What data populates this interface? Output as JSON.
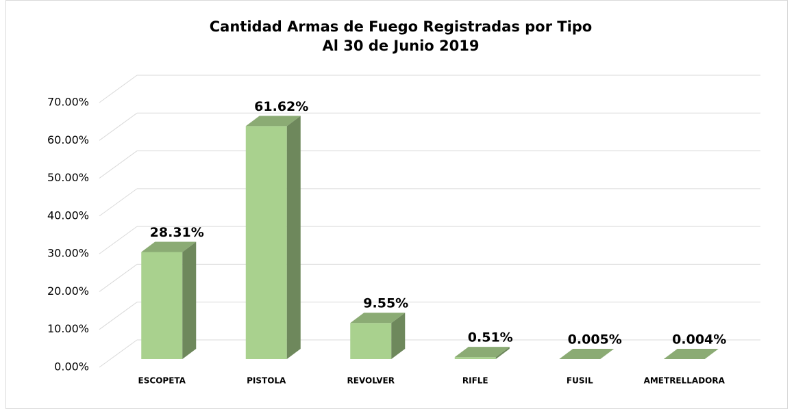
{
  "chart_data": {
    "type": "bar3d",
    "title": "Cantidad Armas de Fuego Registradas por Tipo",
    "subtitle": "Al 30 de Junio 2019",
    "categories": [
      "ESCOPETA",
      "PISTOLA",
      "REVOLVER",
      "RIFLE",
      "FUSIL",
      "AMETRELLADORA"
    ],
    "values": [
      28.31,
      61.62,
      9.55,
      0.51,
      0.005,
      0.004
    ],
    "value_labels": [
      "28.31%",
      "61.62%",
      "9.55%",
      "0.51%",
      "0.005%",
      "0.004%"
    ],
    "color": "#a9d18e",
    "ylim": [
      0,
      70
    ],
    "yticks": [
      {
        "value": 0,
        "label": "0.00%"
      },
      {
        "value": 10,
        "label": "10.00%"
      },
      {
        "value": 20,
        "label": "20.00%"
      },
      {
        "value": 30,
        "label": "30.00%"
      },
      {
        "value": 40,
        "label": "40.00%"
      },
      {
        "value": 50,
        "label": "50.00%"
      },
      {
        "value": 60,
        "label": "60.00%"
      },
      {
        "value": 70,
        "label": "70.00%"
      }
    ],
    "grid": true
  }
}
